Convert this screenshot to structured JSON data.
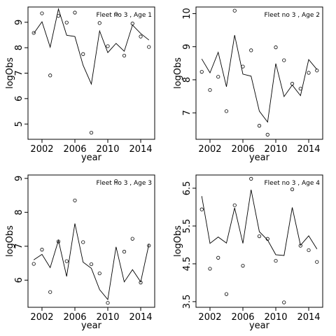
{
  "chart_data": [
    {
      "type": "line",
      "title": "Fleet no 3 , Age 1",
      "xlabel": "year",
      "ylabel": "logObs",
      "xlim": [
        2000.3,
        2015.7
      ],
      "ylim": [
        4.4,
        9.6
      ],
      "xticks": [
        2002,
        2006,
        2010,
        2014
      ],
      "yticks": [
        5,
        6,
        7,
        8,
        9
      ],
      "x": [
        2001,
        2002,
        2003,
        2004,
        2005,
        2006,
        2007,
        2008,
        2009,
        2010,
        2011,
        2012,
        2013,
        2014,
        2015
      ],
      "series": [
        {
          "type": "points",
          "values": [
            8.58,
            9.35,
            6.91,
            9.25,
            8.99,
            9.38,
            7.75,
            4.66,
            8.97,
            8.06,
            9.33,
            7.69,
            8.95,
            8.44,
            8.03
          ]
        },
        {
          "type": "line",
          "values": [
            8.56,
            9.02,
            8.02,
            9.52,
            8.49,
            8.44,
            7.31,
            6.57,
            8.66,
            7.81,
            8.17,
            7.86,
            8.89,
            8.56,
            8.3
          ]
        }
      ]
    },
    {
      "type": "line",
      "title": "Fleet no 3 , Age 2",
      "xlabel": "year",
      "ylabel": "logObs",
      "xlim": [
        2000.3,
        2015.7
      ],
      "ylim": [
        6.2,
        10.2
      ],
      "xticks": [
        2002,
        2006,
        2010,
        2014
      ],
      "yticks": [
        7,
        8,
        9,
        10
      ],
      "x": [
        2001,
        2002,
        2003,
        2004,
        2005,
        2006,
        2007,
        2008,
        2009,
        2010,
        2011,
        2012,
        2013,
        2014,
        2015
      ],
      "series": [
        {
          "type": "points",
          "values": [
            8.24,
            7.69,
            8.09,
            7.05,
            10.09,
            8.4,
            8.89,
            6.61,
            6.34,
            8.98,
            8.59,
            7.88,
            7.73,
            8.21,
            8.28
          ]
        },
        {
          "type": "line",
          "values": [
            8.63,
            8.21,
            8.83,
            7.79,
            9.35,
            8.17,
            8.11,
            7.05,
            6.72,
            8.49,
            7.49,
            7.84,
            7.52,
            8.61,
            8.31
          ]
        }
      ]
    },
    {
      "type": "line",
      "title": "Fleet no 3 , Age 3",
      "xlabel": "year",
      "ylabel": "logObs",
      "xlim": [
        2000.3,
        2015.7
      ],
      "ylim": [
        5.2,
        9.1
      ],
      "xticks": [
        2002,
        2006,
        2010,
        2014
      ],
      "yticks": [
        6,
        7,
        8,
        9
      ],
      "x": [
        2001,
        2002,
        2003,
        2004,
        2005,
        2006,
        2007,
        2008,
        2009,
        2010,
        2011,
        2012,
        2013,
        2014,
        2015
      ],
      "series": [
        {
          "type": "points",
          "values": [
            6.48,
            6.9,
            5.65,
            7.14,
            6.56,
            8.35,
            7.12,
            6.47,
            6.2,
            5.33,
            8.92,
            6.84,
            7.22,
            5.93,
            7.02
          ]
        },
        {
          "type": "line",
          "values": [
            6.6,
            6.76,
            6.37,
            7.17,
            6.11,
            7.67,
            6.53,
            6.35,
            5.72,
            5.43,
            6.98,
            5.95,
            6.31,
            5.95,
            7.06
          ]
        }
      ]
    },
    {
      "type": "line",
      "title": "Fleet no 3 , Age 4",
      "xlabel": "year",
      "ylabel": "logObs",
      "xlim": [
        2000.3,
        2015.7
      ],
      "ylim": [
        3.35,
        6.85
      ],
      "xticks": [
        2002,
        2006,
        2010,
        2014
      ],
      "yticks": [
        3.5,
        4.5,
        5.5,
        6.5
      ],
      "x": [
        2001,
        2002,
        2003,
        2004,
        2005,
        2006,
        2007,
        2008,
        2009,
        2010,
        2011,
        2012,
        2013,
        2014,
        2015
      ],
      "series": [
        {
          "type": "points",
          "values": [
            5.94,
            4.37,
            4.66,
            3.7,
            6.05,
            4.45,
            6.75,
            5.23,
            5.16,
            4.58,
            3.48,
            6.47,
            4.98,
            4.86,
            4.55
          ]
        },
        {
          "type": "line",
          "values": [
            6.29,
            5.04,
            5.21,
            5.05,
            5.98,
            5.04,
            6.46,
            5.35,
            5.13,
            4.74,
            4.72,
            5.99,
            4.99,
            5.24,
            4.89
          ]
        }
      ]
    }
  ]
}
